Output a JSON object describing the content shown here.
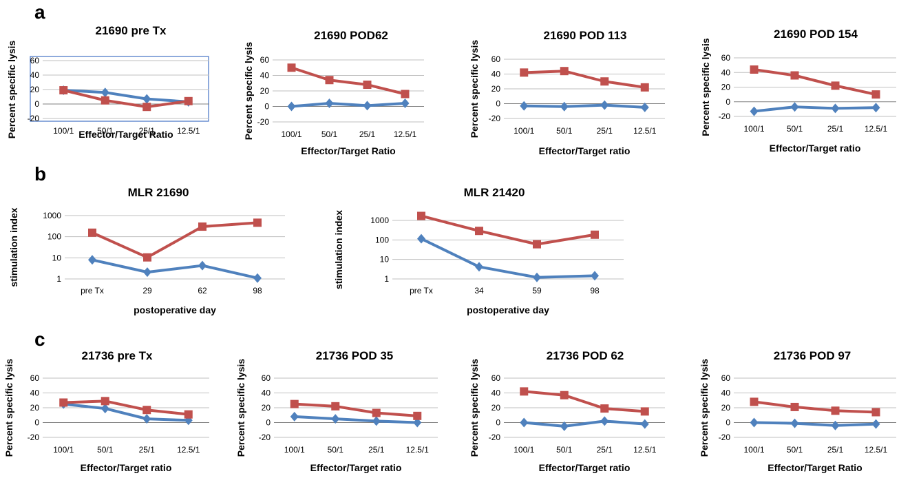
{
  "panels": [
    {
      "letter": "a"
    },
    {
      "letter": "b"
    },
    {
      "letter": "c"
    }
  ],
  "colors": {
    "series_1": "#4f81bd",
    "series_2": "#c0504d",
    "gridline": "#bfbfbf",
    "frame": "#4472c4"
  },
  "chart_data": [
    {
      "type": "line",
      "panel": "a",
      "title": "21690 pre Tx",
      "xlabel": "Effector/Target Ratio",
      "ylabel": "Percent specific lysis",
      "categories": [
        "100/1",
        "50/1",
        "25/1",
        "12.5/1"
      ],
      "ylim": [
        -20,
        60
      ],
      "yticks": [
        -20,
        0,
        20,
        40,
        60
      ],
      "framed": true,
      "series": [
        {
          "marker": "diamond",
          "color": "#4f81bd",
          "values": [
            19,
            16,
            7,
            3
          ]
        },
        {
          "marker": "square",
          "color": "#c0504d",
          "values": [
            19,
            5,
            -4,
            4
          ]
        }
      ]
    },
    {
      "type": "line",
      "panel": "a",
      "title": "21690 POD62",
      "xlabel": "Effector/Target Ratio",
      "ylabel": "Percent specific lysis",
      "categories": [
        "100/1",
        "50/1",
        "25/1",
        "12.5/1"
      ],
      "ylim": [
        -20,
        60
      ],
      "yticks": [
        -20,
        0,
        20,
        40,
        60
      ],
      "series": [
        {
          "marker": "diamond",
          "color": "#4f81bd",
          "values": [
            0,
            4,
            1,
            4
          ]
        },
        {
          "marker": "square",
          "color": "#c0504d",
          "values": [
            50,
            34,
            28,
            16
          ]
        }
      ]
    },
    {
      "type": "line",
      "panel": "a",
      "title": "21690 POD 113",
      "xlabel": "Effector/Target ratio",
      "ylabel": "Percent specific lysis",
      "categories": [
        "100/1",
        "50/1",
        "25/1",
        "12.5/1"
      ],
      "ylim": [
        -20,
        60
      ],
      "yticks": [
        -20,
        0,
        20,
        40,
        60
      ],
      "series": [
        {
          "marker": "diamond",
          "color": "#4f81bd",
          "values": [
            -3,
            -4,
            -2,
            -5
          ]
        },
        {
          "marker": "square",
          "color": "#c0504d",
          "values": [
            42,
            44,
            30,
            22
          ]
        }
      ]
    },
    {
      "type": "line",
      "panel": "a",
      "title": "21690 POD 154",
      "xlabel": "Effector/Target ratio",
      "ylabel": "Percent specific lysis",
      "categories": [
        "100/1",
        "50/1",
        "25/1",
        "12.5/1"
      ],
      "ylim": [
        -20,
        60
      ],
      "yticks": [
        -20,
        0,
        20,
        40,
        60
      ],
      "series": [
        {
          "marker": "diamond",
          "color": "#4f81bd",
          "values": [
            -13,
            -7,
            -9,
            -8
          ]
        },
        {
          "marker": "square",
          "color": "#c0504d",
          "values": [
            44,
            36,
            22,
            10
          ]
        }
      ]
    },
    {
      "type": "line",
      "panel": "b",
      "title": "MLR 21690",
      "log": true,
      "xlabel": "postoperative day",
      "ylabel": "stimulation index",
      "categories": [
        "pre Tx",
        "29",
        "62",
        "98"
      ],
      "ylim": [
        1,
        1000
      ],
      "yticks": [
        1,
        10,
        100,
        1000
      ],
      "series": [
        {
          "marker": "diamond",
          "color": "#4f81bd",
          "values": [
            8,
            2.1,
            4.3,
            1.1
          ]
        },
        {
          "marker": "square",
          "color": "#c0504d",
          "values": [
            155,
            10.5,
            300,
            460
          ]
        }
      ]
    },
    {
      "type": "line",
      "panel": "b",
      "title": "MLR 21420",
      "log": true,
      "xlabel": "postoperative day",
      "ylabel": "stimulation index",
      "categories": [
        "pre Tx",
        "34",
        "59",
        "98"
      ],
      "ylim": [
        1,
        1000
      ],
      "yticks": [
        1,
        10,
        100,
        1000
      ],
      "series": [
        {
          "marker": "diamond",
          "color": "#4f81bd",
          "values": [
            115,
            4.2,
            1.2,
            1.45
          ]
        },
        {
          "marker": "square",
          "color": "#c0504d",
          "values": [
            1700,
            290,
            60,
            185
          ]
        }
      ]
    },
    {
      "type": "line",
      "panel": "c",
      "title": "21736 pre Tx",
      "xlabel": "Effector/Target ratio",
      "ylabel": "Percent specific lysis",
      "categories": [
        "100/1",
        "50/1",
        "25/1",
        "12.5/1"
      ],
      "ylim": [
        -20,
        60
      ],
      "yticks": [
        -20,
        0,
        20,
        40,
        60
      ],
      "series": [
        {
          "marker": "diamond",
          "color": "#4f81bd",
          "values": [
            25,
            19,
            5,
            3
          ]
        },
        {
          "marker": "square",
          "color": "#c0504d",
          "values": [
            27,
            29,
            17,
            11
          ]
        }
      ]
    },
    {
      "type": "line",
      "panel": "c",
      "title": "21736 POD 35",
      "xlabel": "Effector/Target ratio",
      "ylabel": "Percent specific lysis",
      "categories": [
        "100/1",
        "50/1",
        "25/1",
        "12.5/1"
      ],
      "ylim": [
        -20,
        60
      ],
      "yticks": [
        -20,
        0,
        20,
        40,
        60
      ],
      "series": [
        {
          "marker": "diamond",
          "color": "#4f81bd",
          "values": [
            8,
            5,
            2,
            0
          ]
        },
        {
          "marker": "square",
          "color": "#c0504d",
          "values": [
            25,
            22,
            13,
            9
          ]
        }
      ]
    },
    {
      "type": "line",
      "panel": "c",
      "title": "21736 POD 62",
      "xlabel": "Effector/Target ratio",
      "ylabel": "Percent specific lysis",
      "categories": [
        "100/1",
        "50/1",
        "25/1",
        "12.5/1"
      ],
      "ylim": [
        -20,
        60
      ],
      "yticks": [
        -20,
        0,
        20,
        40,
        60
      ],
      "series": [
        {
          "marker": "diamond",
          "color": "#4f81bd",
          "values": [
            0,
            -5,
            2,
            -2
          ]
        },
        {
          "marker": "square",
          "color": "#c0504d",
          "values": [
            42,
            37,
            19,
            15
          ]
        }
      ]
    },
    {
      "type": "line",
      "panel": "c",
      "title": "21736 POD 97",
      "xlabel": "Effector/Target Ratio",
      "ylabel": "Percent specific lysis",
      "categories": [
        "100/1",
        "50/1",
        "25/1",
        "12.5/1"
      ],
      "ylim": [
        -20,
        60
      ],
      "yticks": [
        -20,
        0,
        20,
        40,
        60
      ],
      "series": [
        {
          "marker": "diamond",
          "color": "#4f81bd",
          "values": [
            0,
            -1,
            -4,
            -2
          ]
        },
        {
          "marker": "square",
          "color": "#c0504d",
          "values": [
            28,
            21,
            16,
            14
          ]
        }
      ]
    }
  ]
}
